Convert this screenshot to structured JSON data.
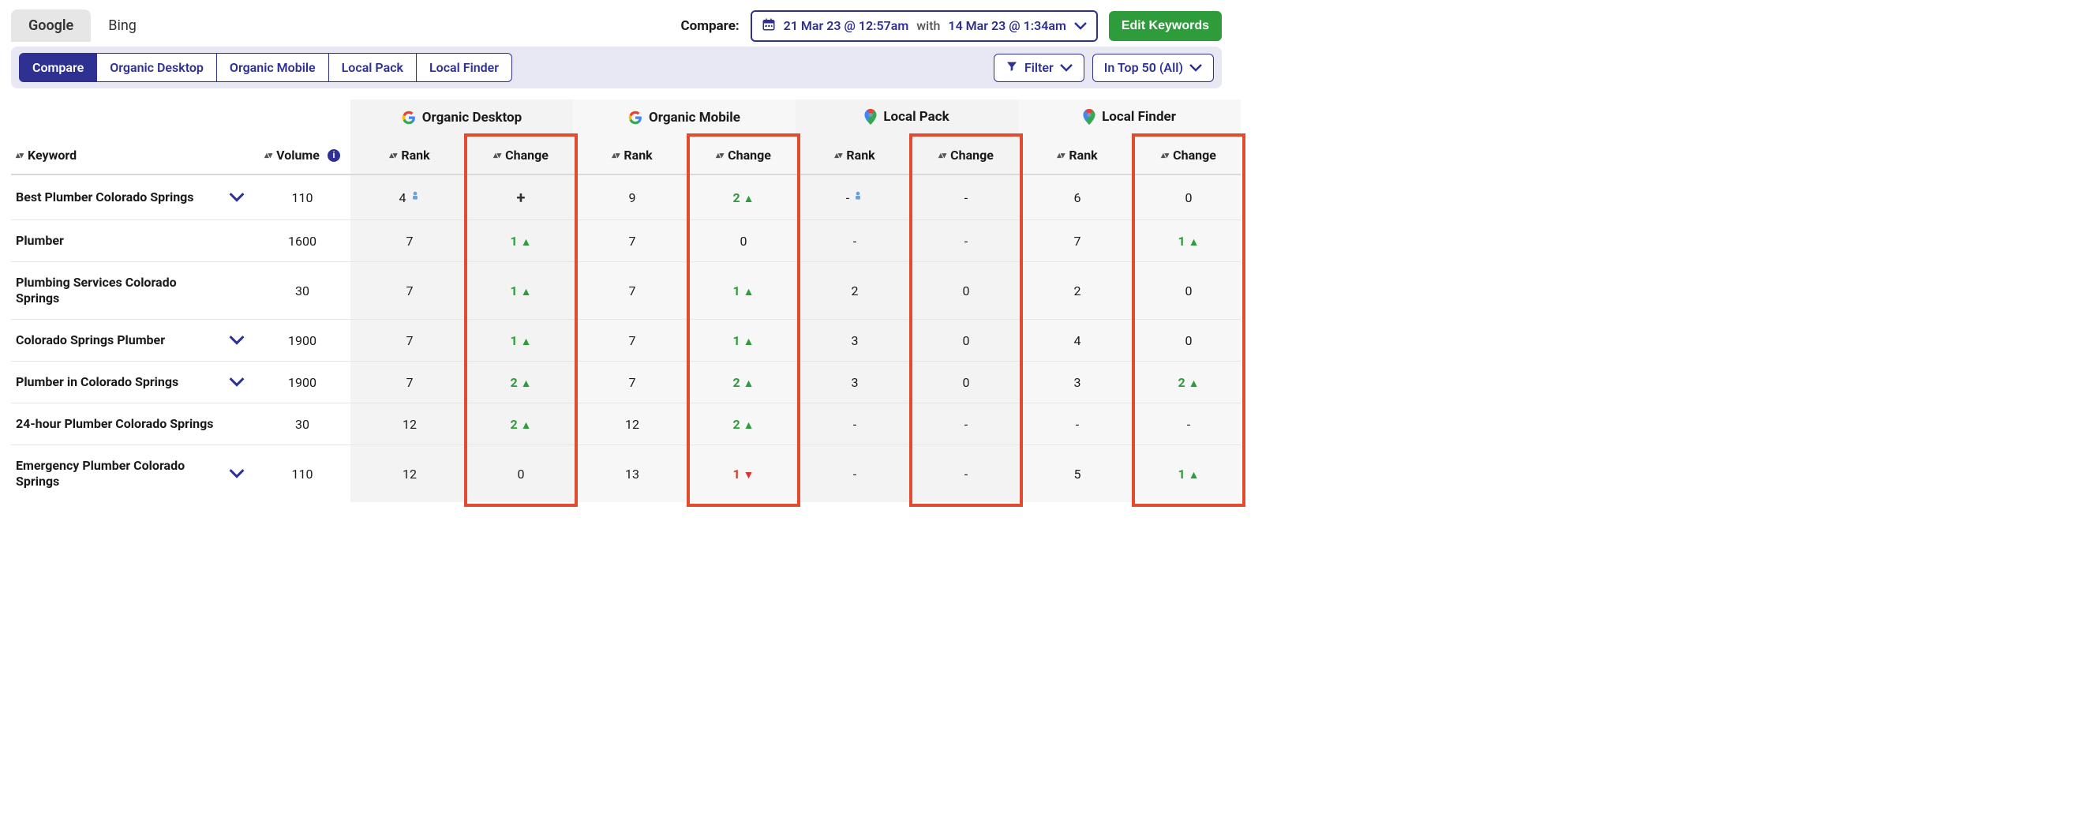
{
  "colors": {
    "primary": "#2e3192",
    "green": "#2e9c3a",
    "red": "#d9372b",
    "highlight_border": "#e34b2e",
    "section_bg": "#f3f3f3",
    "section_bg_alt": "#f7f7f7",
    "filter_bar_bg": "#e8e8f5"
  },
  "engine_tabs": {
    "google": "Google",
    "bing": "Bing",
    "active": "google"
  },
  "compare": {
    "label": "Compare:",
    "date1": "21 Mar 23 @ 12:57am",
    "with": "with",
    "date2": "14 Mar 23 @ 1:34am"
  },
  "edit_keywords": "Edit Keywords",
  "view_tabs": {
    "compare": "Compare",
    "organic_desktop": "Organic Desktop",
    "organic_mobile": "Organic Mobile",
    "local_pack": "Local Pack",
    "local_finder": "Local Finder",
    "active": "compare"
  },
  "filter_button": "Filter",
  "in_top_button": "In Top 50 (All)",
  "column_groups": {
    "organic_desktop": "Organic Desktop",
    "organic_mobile": "Organic Mobile",
    "local_pack": "Local Pack",
    "local_finder": "Local Finder"
  },
  "columns": {
    "keyword": "Keyword",
    "volume": "Volume",
    "rank": "Rank",
    "change": "Change"
  },
  "rows": [
    {
      "keyword": "Best Plumber Colorado Springs",
      "volume": "110",
      "expandable": true,
      "od_rank": "4",
      "od_rank_icon": true,
      "od_change": "+",
      "od_dir": "plus",
      "om_rank": "9",
      "om_change": "2",
      "om_dir": "up",
      "lp_rank": "-",
      "lp_rank_icon": true,
      "lp_change": "-",
      "lp_dir": "none",
      "lf_rank": "6",
      "lf_change": "0",
      "lf_dir": "none"
    },
    {
      "keyword": "Plumber",
      "volume": "1600",
      "expandable": false,
      "od_rank": "7",
      "od_change": "1",
      "od_dir": "up",
      "om_rank": "7",
      "om_change": "0",
      "om_dir": "none",
      "lp_rank": "-",
      "lp_change": "-",
      "lp_dir": "none",
      "lf_rank": "7",
      "lf_change": "1",
      "lf_dir": "up"
    },
    {
      "keyword": "Plumbing Services Colorado Springs",
      "volume": "30",
      "expandable": false,
      "od_rank": "7",
      "od_change": "1",
      "od_dir": "up",
      "om_rank": "7",
      "om_change": "1",
      "om_dir": "up",
      "lp_rank": "2",
      "lp_change": "0",
      "lp_dir": "none",
      "lf_rank": "2",
      "lf_change": "0",
      "lf_dir": "none"
    },
    {
      "keyword": "Colorado Springs Plumber",
      "volume": "1900",
      "expandable": true,
      "od_rank": "7",
      "od_change": "1",
      "od_dir": "up",
      "om_rank": "7",
      "om_change": "1",
      "om_dir": "up",
      "lp_rank": "3",
      "lp_change": "0",
      "lp_dir": "none",
      "lf_rank": "4",
      "lf_change": "0",
      "lf_dir": "none"
    },
    {
      "keyword": "Plumber in Colorado Springs",
      "volume": "1900",
      "expandable": true,
      "od_rank": "7",
      "od_change": "2",
      "od_dir": "up",
      "om_rank": "7",
      "om_change": "2",
      "om_dir": "up",
      "lp_rank": "3",
      "lp_change": "0",
      "lp_dir": "none",
      "lf_rank": "3",
      "lf_change": "2",
      "lf_dir": "up"
    },
    {
      "keyword": "24-hour Plumber Colorado Springs",
      "volume": "30",
      "expandable": false,
      "od_rank": "12",
      "od_change": "2",
      "od_dir": "up",
      "om_rank": "12",
      "om_change": "2",
      "om_dir": "up",
      "lp_rank": "-",
      "lp_change": "-",
      "lp_dir": "none",
      "lf_rank": "-",
      "lf_change": "-",
      "lf_dir": "none"
    },
    {
      "keyword": "Emergency Plumber Colorado Springs",
      "volume": "110",
      "expandable": true,
      "od_rank": "12",
      "od_change": "0",
      "od_dir": "none",
      "om_rank": "13",
      "om_change": "1",
      "om_dir": "down",
      "lp_rank": "-",
      "lp_change": "-",
      "lp_dir": "none",
      "lf_rank": "5",
      "lf_change": "1",
      "lf_dir": "up"
    }
  ]
}
